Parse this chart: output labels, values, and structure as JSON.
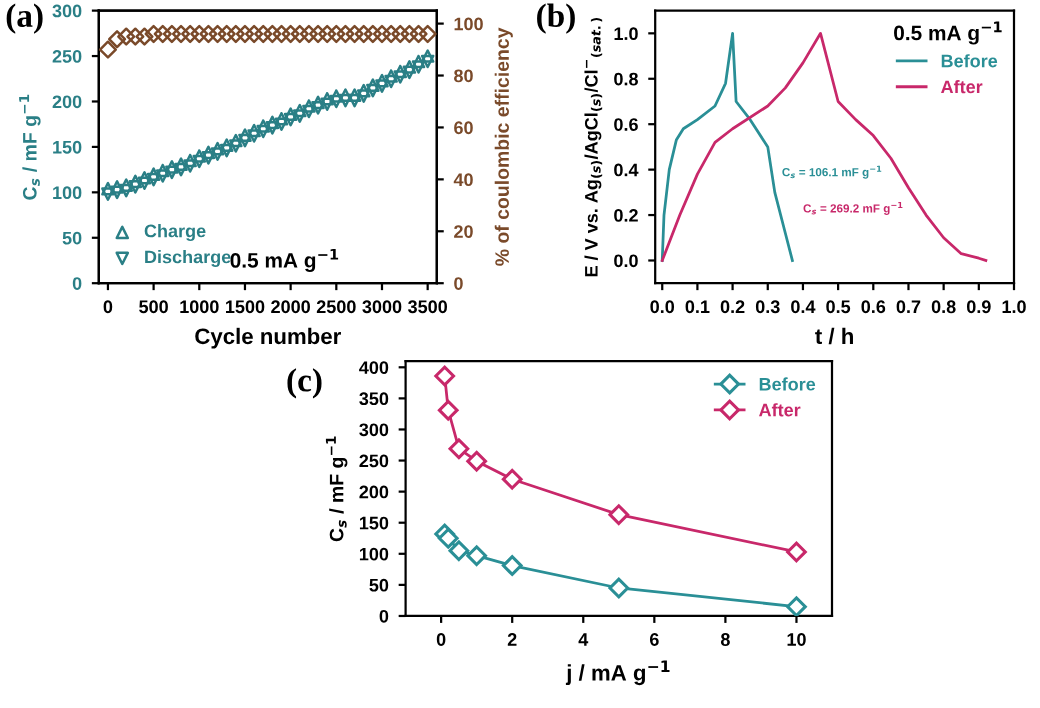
{
  "chart_data": [
    {
      "type": "scatter",
      "title": "(a)",
      "xlabel": "Cycle number",
      "ylabel": "C$_{s}$ / mF g$^{−1}$",
      "y2label": "% of coulombic efficiency",
      "x": [
        0,
        100,
        200,
        300,
        400,
        500,
        600,
        700,
        800,
        900,
        1000,
        1100,
        1200,
        1300,
        1400,
        1500,
        1600,
        1700,
        1800,
        1900,
        2000,
        2100,
        2200,
        2300,
        2400,
        2500,
        2600,
        2700,
        2800,
        2900,
        3000,
        3100,
        3200,
        3300,
        3400,
        3500
      ],
      "series": [
        {
          "name": "Charge",
          "color": "#2a7f86",
          "marker": "triangle",
          "values": [
            104,
            106,
            108,
            112,
            116,
            120,
            124,
            128,
            131,
            135,
            140,
            144,
            148,
            152,
            157,
            163,
            168,
            173,
            177,
            181,
            186,
            190,
            195,
            199,
            203,
            206,
            207,
            207,
            212,
            218,
            223,
            228,
            233,
            238,
            244,
            250
          ]
        },
        {
          "name": "Discharge",
          "color": "#2a7f86",
          "marker": "triangle_down",
          "values": [
            98,
            100,
            102,
            106,
            110,
            114,
            118,
            122,
            125,
            129,
            134,
            138,
            142,
            146,
            151,
            157,
            162,
            167,
            171,
            175,
            180,
            184,
            189,
            193,
            197,
            200,
            201,
            201,
            206,
            212,
            217,
            222,
            227,
            232,
            238,
            244
          ]
        },
        {
          "color": "#7a4a2a",
          "marker": "diamond",
          "axis": "y2",
          "values": [
            90,
            94,
            95,
            95,
            95,
            96,
            96,
            96,
            96,
            96,
            96,
            96,
            96,
            96,
            96,
            96,
            96,
            96,
            96,
            96,
            96,
            96,
            96,
            96,
            96,
            96,
            96,
            96,
            96,
            96,
            96,
            96,
            96,
            96,
            96,
            96
          ]
        }
      ],
      "xlim": [
        -100,
        3600
      ],
      "xticks": [
        0,
        500,
        1000,
        1500,
        2000,
        2500,
        3000,
        3500
      ],
      "ylim": [
        0,
        300
      ],
      "yticks": [
        0,
        50,
        100,
        150,
        200,
        250,
        300
      ],
      "y2lim": [
        0,
        105
      ],
      "y2ticks": [
        0,
        20,
        40,
        60,
        80,
        100
      ],
      "legend": "bottom left",
      "annotations": [
        "0.5 mA g$^{−1}$"
      ]
    },
    {
      "type": "line",
      "title": "(b)",
      "xlabel": "t / h",
      "ylabel": "E / V vs. Ag$_{(s)}$/AgCl$_{(s)}$/Cl$^{−}$$_{(sat.)}$",
      "series": [
        {
          "name": "Before",
          "color": "#2a8f96",
          "x": [
            0,
            0.005,
            0.02,
            0.04,
            0.06,
            0.1,
            0.15,
            0.18,
            0.2,
            0.21,
            0.25,
            0.3,
            0.32,
            0.35,
            0.37
          ],
          "values": [
            0,
            0.2,
            0.4,
            0.53,
            0.58,
            0.62,
            0.68,
            0.78,
            1.0,
            0.7,
            0.62,
            0.5,
            0.3,
            0.12,
            0.0
          ]
        },
        {
          "name": "After",
          "color": "#c8286a",
          "x": [
            0,
            0.05,
            0.1,
            0.15,
            0.2,
            0.3,
            0.35,
            0.4,
            0.45,
            0.5,
            0.55,
            0.6,
            0.65,
            0.7,
            0.75,
            0.8,
            0.85,
            0.9,
            0.92
          ],
          "values": [
            0,
            0.2,
            0.38,
            0.52,
            0.58,
            0.68,
            0.76,
            0.87,
            1.0,
            0.7,
            0.62,
            0.55,
            0.45,
            0.32,
            0.2,
            0.1,
            0.03,
            0.01,
            0.0
          ]
        }
      ],
      "xlim": [
        -0.02,
        1.0
      ],
      "xticks": [
        {
          "value": 0,
          "label": "0.0"
        },
        0.1,
        0.2,
        0.3,
        0.4,
        0.5,
        0.6,
        0.7,
        0.8,
        0.9,
        {
          "value": 1,
          "label": "1.0"
        }
      ],
      "ylim": [
        -0.1,
        1.1
      ],
      "yticks": [
        {
          "value": 0,
          "label": "0.0"
        },
        0.2,
        0.4,
        0.6,
        0.8,
        {
          "value": 1,
          "label": "1.0"
        }
      ],
      "legend": "top right",
      "annotations": [
        "0.5 mA g$^{−1}$",
        "C$_{s}$ = 106.1 mF g$^{−1}$",
        "C$_{s}$ = 269.2 mF g$^{−1}$"
      ]
    },
    {
      "type": "line",
      "title": "(c)",
      "xlabel": "j / mA g$^{−1}$",
      "ylabel": "C$_{s}$ / mF g$^{−1}$",
      "marker": "diamond",
      "x": [
        0.1,
        0.2,
        0.5,
        1,
        2,
        5,
        10
      ],
      "series": [
        {
          "name": "Before",
          "color": "#2a8f96",
          "values": [
            132,
            125,
            105,
            97,
            81,
            45,
            15
          ]
        },
        {
          "name": "After",
          "color": "#c8286a",
          "values": [
            386,
            331,
            269,
            249,
            220,
            163,
            103
          ]
        }
      ],
      "xlim": [
        -1,
        11
      ],
      "xticks": [
        0,
        2,
        4,
        6,
        8,
        10
      ],
      "ylim": [
        0,
        410
      ],
      "yticks": [
        0,
        50,
        100,
        150,
        200,
        250,
        300,
        350,
        400
      ],
      "legend": "top right"
    }
  ]
}
